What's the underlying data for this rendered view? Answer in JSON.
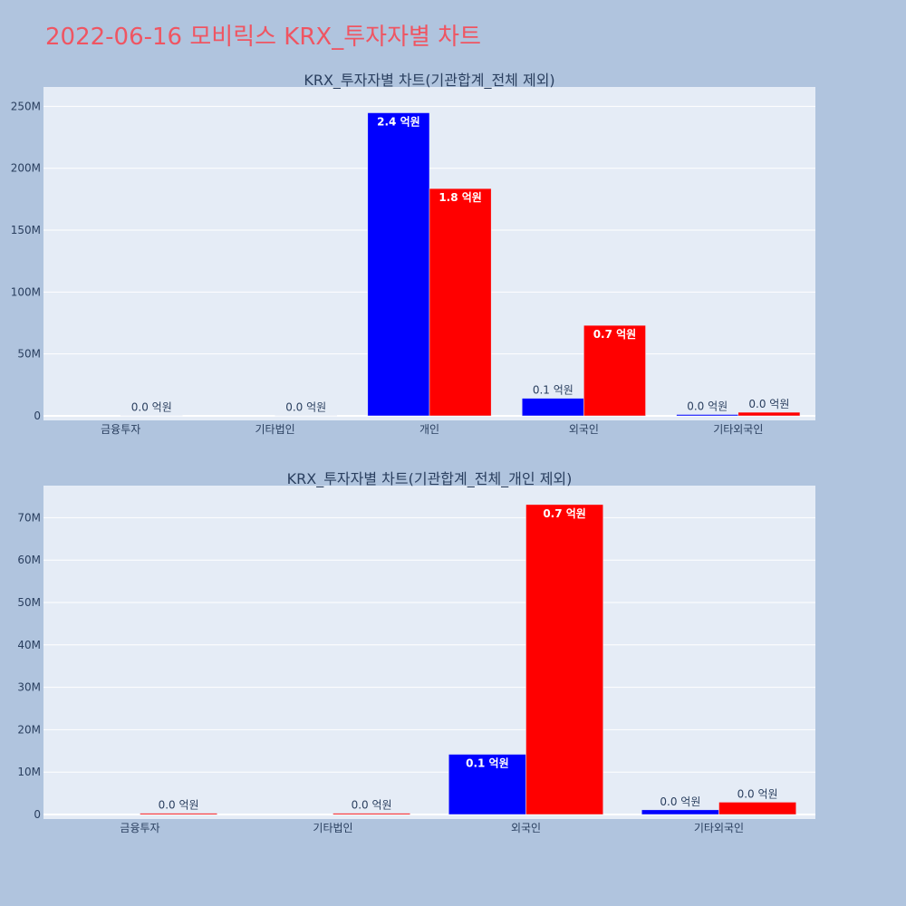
{
  "title": "2022-06-16 모비릭스 KRX_투자자별 차트",
  "colors": {
    "page_bg": "#b0c4de",
    "plot_bg": "#e5ecf6",
    "title": "#ef5562",
    "series_1": "#0000ff",
    "series_2": "#ff0000",
    "text": "#2a3f5f",
    "grid": "#ffffff"
  },
  "chart_data": [
    {
      "type": "bar",
      "title": "KRX_투자자별 차트(기관합계_전체 제외)",
      "categories": [
        "금융투자",
        "기타법인",
        "개인",
        "외국인",
        "기타외국인"
      ],
      "ylim": [
        0,
        262000000
      ],
      "yticks": [
        0,
        50000000,
        100000000,
        150000000,
        200000000,
        250000000
      ],
      "ytick_labels": [
        "0",
        "50M",
        "100M",
        "150M",
        "200M",
        "250M"
      ],
      "grid": true,
      "series": [
        {
          "values": [
            0,
            0,
            244800000,
            14200000,
            1100000
          ],
          "labels": [
            "",
            "",
            "2.4 억원",
            "0.1 억원",
            "0.0 억원"
          ]
        },
        {
          "values": [
            300000,
            300000,
            183600000,
            73100000,
            2900000
          ],
          "labels": [
            "0.0 억원",
            "0.0 억원",
            "1.8 억원",
            "0.7 억원",
            "0.0 억원"
          ]
        }
      ]
    },
    {
      "type": "bar",
      "title": "KRX_투자자별 차트(기관합계_전체_개인 제외)",
      "categories": [
        "금융투자",
        "기타법인",
        "외국인",
        "기타외국인"
      ],
      "ylim": [
        0,
        76500000
      ],
      "yticks": [
        0,
        10000000,
        20000000,
        30000000,
        40000000,
        50000000,
        60000000,
        70000000
      ],
      "ytick_labels": [
        "0",
        "10M",
        "20M",
        "30M",
        "40M",
        "50M",
        "60M",
        "70M"
      ],
      "grid": true,
      "series": [
        {
          "values": [
            0,
            0,
            14200000,
            1100000
          ],
          "labels": [
            "",
            "",
            "0.1 억원",
            "0.0 억원"
          ]
        },
        {
          "values": [
            300000,
            300000,
            73100000,
            2900000
          ],
          "labels": [
            "0.0 억원",
            "0.0 억원",
            "0.7 억원",
            "0.0 억원"
          ]
        }
      ]
    }
  ]
}
